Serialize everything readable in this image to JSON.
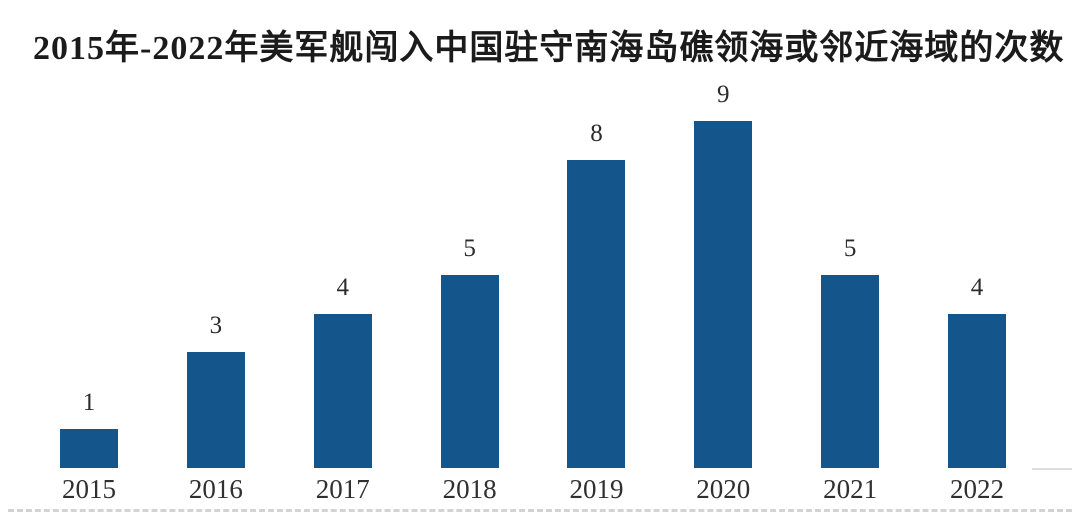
{
  "title": "2015年-2022年美军舰闯入中国驻守南海岛礁领海或邻近海域的次数",
  "chart_data": {
    "type": "bar",
    "title": "2015年-2022年美军舰闯入中国驻守南海岛礁领海或邻近海域的次数",
    "categories": [
      "2015",
      "2016",
      "2017",
      "2018",
      "2019",
      "2020",
      "2021",
      "2022"
    ],
    "values": [
      1,
      3,
      4,
      5,
      8,
      9,
      5,
      4
    ],
    "value_labels": [
      "1",
      "3",
      "4",
      "5",
      "8",
      "9",
      "5",
      "4"
    ],
    "xlabel": "",
    "ylabel": "",
    "ylim": [
      0,
      9.6
    ],
    "grid": false,
    "legend": false,
    "bar_color": "#14568C",
    "label_color": "#2b2b2b",
    "title_color": "#1b1b1b",
    "background_color": "#ffffff"
  }
}
